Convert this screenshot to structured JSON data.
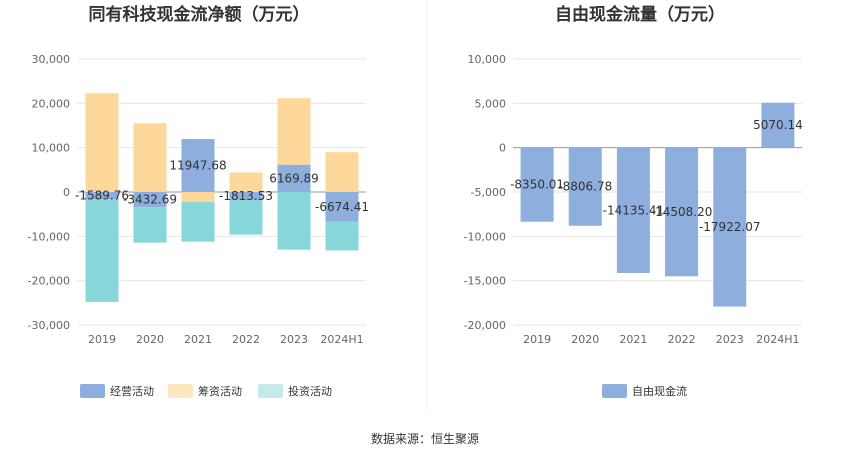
{
  "chart_data": [
    {
      "type": "bar",
      "stacked": true,
      "title": "同有科技现金流净额（万元）",
      "categories": [
        "2019",
        "2020",
        "2021",
        "2022",
        "2023",
        "2024H1"
      ],
      "ylim": [
        -30000,
        30000
      ],
      "yticks": [
        "30,000",
        "20,000",
        "10,000",
        "0",
        "-10,000",
        "-20,000",
        "-30,000"
      ],
      "ytick_values": [
        30000,
        20000,
        10000,
        0,
        -10000,
        -20000,
        -30000
      ],
      "grid": true,
      "legend": "bottom",
      "series": [
        {
          "name": "经营活动",
          "color": "#8eaedd",
          "values": [
            -1589.76,
            -3432.69,
            11947.68,
            -1813.53,
            6169.89,
            -6674.41
          ],
          "labels": [
            "-1589.76",
            "-3432.69",
            "11947.68",
            "-1813.53",
            "6169.89",
            "-6674.41"
          ]
        },
        {
          "name": "筹资活动",
          "color": "#fed89b",
          "values": [
            22300,
            15500,
            -2200,
            4400,
            15000,
            9000
          ]
        },
        {
          "name": "投资活动",
          "color": "#86d6da",
          "values": [
            -23200,
            -8000,
            -9000,
            -7800,
            -13000,
            -6500
          ]
        }
      ],
      "legend_colors": [
        "#8eaedd",
        "#fee6bf",
        "#c4eaec"
      ]
    },
    {
      "type": "bar",
      "title": "自由现金流量（万元）",
      "categories": [
        "2019",
        "2020",
        "2021",
        "2022",
        "2023",
        "2024H1"
      ],
      "ylim": [
        -20000,
        10000
      ],
      "yticks": [
        "10,000",
        "5,000",
        "0",
        "-5,000",
        "-10,000",
        "-15,000",
        "-20,000"
      ],
      "ytick_values": [
        10000,
        5000,
        0,
        -5000,
        -10000,
        -15000,
        -20000
      ],
      "grid": true,
      "legend": "bottom",
      "series": [
        {
          "name": "自由现金流",
          "color": "#8eaedd",
          "values": [
            -8350.01,
            -8806.78,
            -14135.41,
            -14508.2,
            -17922.07,
            5070.14
          ],
          "labels": [
            "-8350.01",
            "-8806.78",
            "-14135.41",
            "-14508.20",
            "-17922.07",
            "5070.14"
          ]
        }
      ]
    }
  ],
  "source": "数据来源：恒生聚源"
}
